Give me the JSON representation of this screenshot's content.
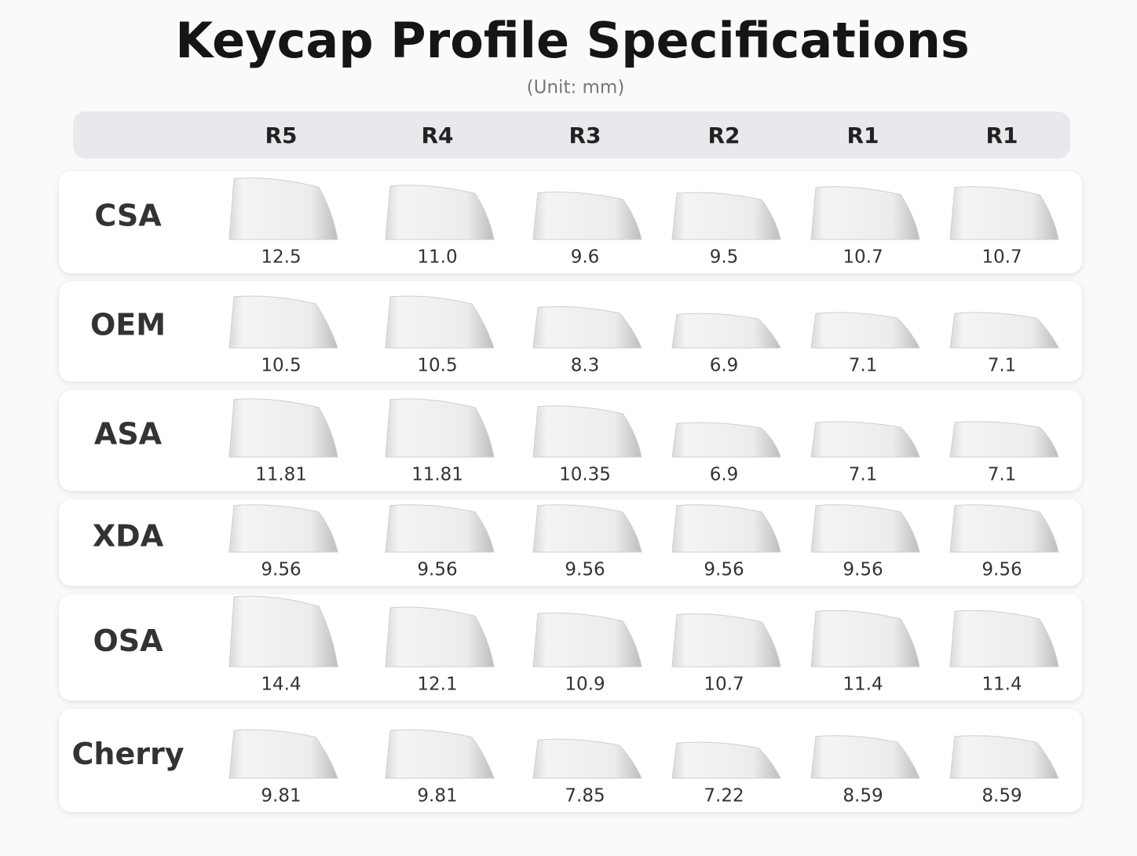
{
  "header": {
    "title": "Keycap Profile Specifications",
    "subtitle": "(Unit: mm)"
  },
  "table": {
    "columns": [
      "R5",
      "R4",
      "R3",
      "R2",
      "R1",
      "R1"
    ],
    "rows": [
      {
        "label": "CSA",
        "values": [
          "12.5",
          "11.0",
          "9.6",
          "9.5",
          "10.7",
          "10.7"
        ]
      },
      {
        "label": "OEM",
        "values": [
          "10.5",
          "10.5",
          "8.3",
          "6.9",
          "7.1",
          "7.1"
        ]
      },
      {
        "label": "ASA",
        "values": [
          "11.81",
          "11.81",
          "10.35",
          "6.9",
          "7.1",
          "7.1"
        ]
      },
      {
        "label": "XDA",
        "values": [
          "9.56",
          "9.56",
          "9.56",
          "9.56",
          "9.56",
          "9.56"
        ]
      },
      {
        "label": "OSA",
        "values": [
          "14.4",
          "12.1",
          "10.9",
          "10.7",
          "11.4",
          "11.4"
        ]
      },
      {
        "label": "Cherry",
        "values": [
          "9.81",
          "9.81",
          "7.85",
          "7.22",
          "8.59",
          "8.59"
        ]
      }
    ]
  }
}
